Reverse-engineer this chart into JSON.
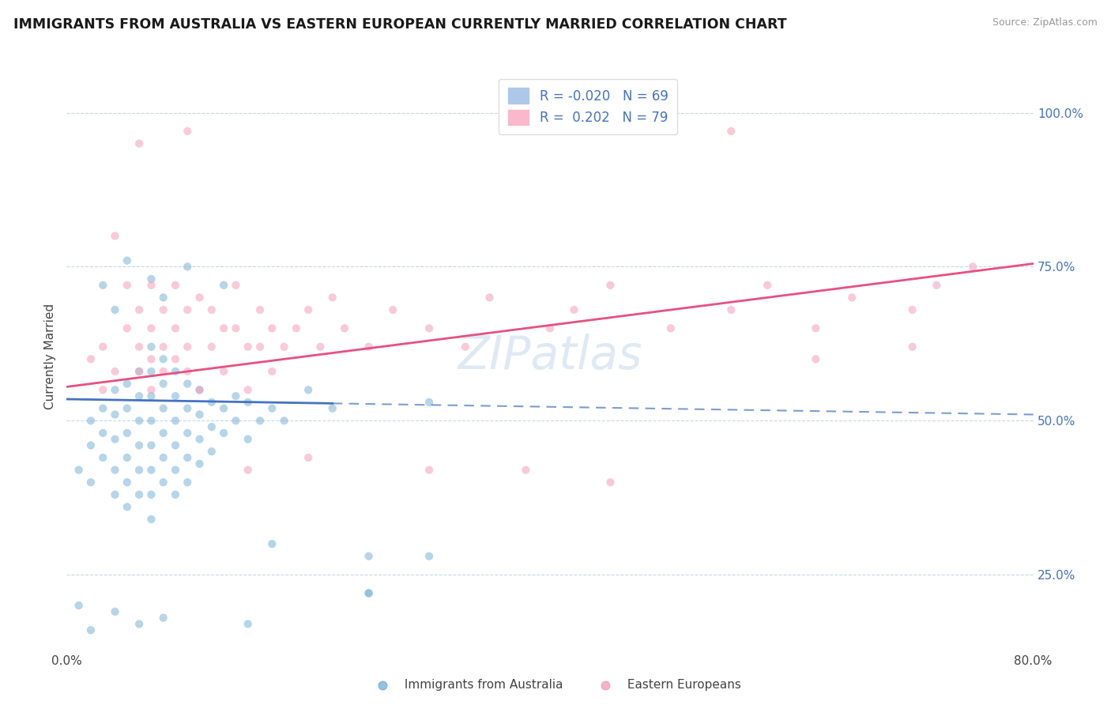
{
  "title": "IMMIGRANTS FROM AUSTRALIA VS EASTERN EUROPEAN CURRENTLY MARRIED CORRELATION CHART",
  "source": "Source: ZipAtlas.com",
  "ylabel": "Currently Married",
  "watermark": "ZIPatlas",
  "xlim": [
    0.0,
    0.8
  ],
  "ylim": [
    0.13,
    1.08
  ],
  "blue_color": "#7ab3d8",
  "pink_color": "#f4a0b8",
  "ytick_vals": [
    0.25,
    0.5,
    0.75,
    1.0
  ],
  "ytick_labels": [
    "25.0%",
    "50.0%",
    "75.0%",
    "100.0%"
  ],
  "xtick_left_label": "0.0%",
  "xtick_right_label": "80.0%",
  "legend_R_blue": "-0.020",
  "legend_N_blue": "69",
  "legend_R_pink": "0.202",
  "legend_N_pink": "79",
  "blue_trend_x": [
    0.0,
    0.8
  ],
  "blue_trend_y": [
    0.535,
    0.51
  ],
  "blue_trend_solid_end": 0.22,
  "pink_trend_x": [
    0.0,
    0.8
  ],
  "pink_trend_y": [
    0.555,
    0.755
  ],
  "blue_x": [
    0.01,
    0.02,
    0.02,
    0.02,
    0.03,
    0.03,
    0.03,
    0.04,
    0.04,
    0.04,
    0.04,
    0.04,
    0.05,
    0.05,
    0.05,
    0.05,
    0.05,
    0.05,
    0.06,
    0.06,
    0.06,
    0.06,
    0.06,
    0.06,
    0.07,
    0.07,
    0.07,
    0.07,
    0.07,
    0.07,
    0.07,
    0.07,
    0.08,
    0.08,
    0.08,
    0.08,
    0.08,
    0.08,
    0.09,
    0.09,
    0.09,
    0.09,
    0.09,
    0.09,
    0.1,
    0.1,
    0.1,
    0.1,
    0.1,
    0.11,
    0.11,
    0.11,
    0.11,
    0.12,
    0.12,
    0.12,
    0.13,
    0.13,
    0.14,
    0.14,
    0.15,
    0.15,
    0.16,
    0.17,
    0.18,
    0.2,
    0.22,
    0.25,
    0.3
  ],
  "blue_y": [
    0.42,
    0.5,
    0.46,
    0.4,
    0.52,
    0.48,
    0.44,
    0.55,
    0.51,
    0.47,
    0.42,
    0.38,
    0.56,
    0.52,
    0.48,
    0.44,
    0.4,
    0.36,
    0.58,
    0.54,
    0.5,
    0.46,
    0.42,
    0.38,
    0.62,
    0.58,
    0.54,
    0.5,
    0.46,
    0.42,
    0.38,
    0.34,
    0.6,
    0.56,
    0.52,
    0.48,
    0.44,
    0.4,
    0.58,
    0.54,
    0.5,
    0.46,
    0.42,
    0.38,
    0.56,
    0.52,
    0.48,
    0.44,
    0.4,
    0.55,
    0.51,
    0.47,
    0.43,
    0.53,
    0.49,
    0.45,
    0.52,
    0.48,
    0.54,
    0.5,
    0.53,
    0.47,
    0.5,
    0.52,
    0.5,
    0.55,
    0.52,
    0.22,
    0.53
  ],
  "blue_outliers_x": [
    0.03,
    0.04,
    0.05,
    0.07,
    0.08,
    0.1,
    0.13,
    0.17,
    0.25
  ],
  "blue_outliers_y": [
    0.72,
    0.68,
    0.76,
    0.73,
    0.7,
    0.75,
    0.72,
    0.3,
    0.22
  ],
  "blue_low_x": [
    0.01,
    0.02,
    0.04,
    0.06,
    0.08,
    0.15,
    0.25,
    0.3
  ],
  "blue_low_y": [
    0.2,
    0.16,
    0.19,
    0.17,
    0.18,
    0.17,
    0.28,
    0.28
  ],
  "pink_x": [
    0.02,
    0.03,
    0.03,
    0.04,
    0.04,
    0.05,
    0.05,
    0.06,
    0.06,
    0.06,
    0.07,
    0.07,
    0.07,
    0.07,
    0.08,
    0.08,
    0.08,
    0.09,
    0.09,
    0.09,
    0.1,
    0.1,
    0.1,
    0.11,
    0.11,
    0.12,
    0.12,
    0.13,
    0.13,
    0.14,
    0.14,
    0.15,
    0.15,
    0.16,
    0.16,
    0.17,
    0.17,
    0.18,
    0.19,
    0.2,
    0.21,
    0.22,
    0.23,
    0.25,
    0.27,
    0.3,
    0.33,
    0.35,
    0.4,
    0.42,
    0.45,
    0.5,
    0.55,
    0.58,
    0.62,
    0.65,
    0.7,
    0.72,
    0.75
  ],
  "pink_y": [
    0.6,
    0.62,
    0.55,
    0.8,
    0.58,
    0.72,
    0.65,
    0.68,
    0.62,
    0.58,
    0.72,
    0.65,
    0.6,
    0.55,
    0.68,
    0.62,
    0.58,
    0.72,
    0.65,
    0.6,
    0.68,
    0.62,
    0.58,
    0.7,
    0.55,
    0.68,
    0.62,
    0.65,
    0.58,
    0.72,
    0.65,
    0.62,
    0.55,
    0.68,
    0.62,
    0.65,
    0.58,
    0.62,
    0.65,
    0.68,
    0.62,
    0.7,
    0.65,
    0.62,
    0.68,
    0.65,
    0.62,
    0.7,
    0.65,
    0.68,
    0.72,
    0.65,
    0.68,
    0.72,
    0.65,
    0.7,
    0.68,
    0.72,
    0.75
  ],
  "pink_special_x": [
    0.06,
    0.1,
    0.55,
    0.62,
    0.7,
    0.15,
    0.2,
    0.3,
    0.38,
    0.45
  ],
  "pink_special_y": [
    0.95,
    0.97,
    0.97,
    0.6,
    0.62,
    0.42,
    0.44,
    0.42,
    0.42,
    0.4
  ]
}
